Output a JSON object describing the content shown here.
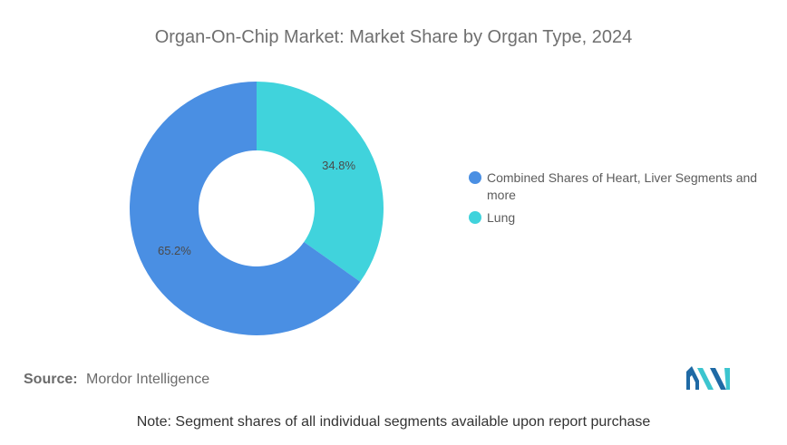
{
  "chart_data": {
    "type": "pie",
    "title": "Organ-On-Chip Market: Market Share by Organ Type, 2024",
    "donut": true,
    "legend_position": "right",
    "slices": [
      {
        "label": "Combined Shares of Heart, Liver Segments and more",
        "value": 65.2,
        "display": "65.2%",
        "color": "#4a8fe3"
      },
      {
        "label": "Lung",
        "value": 34.8,
        "display": "34.8%",
        "color": "#40d3dc"
      }
    ]
  },
  "source": {
    "label": "Source:",
    "text": "Mordor Intelligence"
  },
  "logo": {
    "icon": "mordor-intelligence-logo",
    "color_dark": "#1f6aa5",
    "color_light": "#3cc5cf"
  },
  "note": "Note: Segment shares of all individual segments available upon report purchase"
}
